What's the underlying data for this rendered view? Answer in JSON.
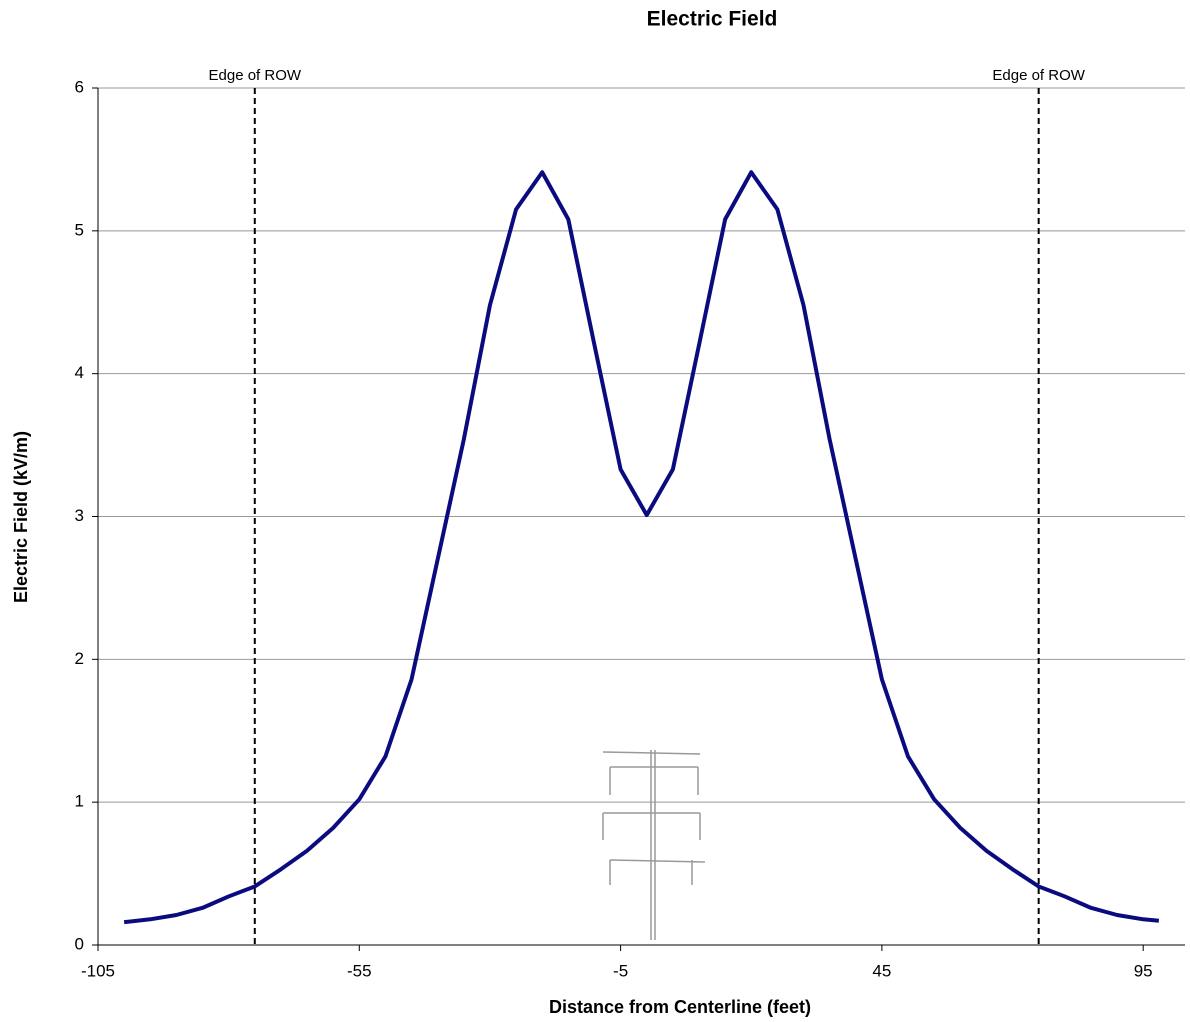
{
  "chart_data": {
    "type": "line",
    "title": "Electric Field",
    "x_label": "Distance from Centerline (feet)",
    "y_label": "Electric Field (kV/m)",
    "x": [
      -100,
      -95,
      -90,
      -85,
      -80,
      -75,
      -70,
      -65,
      -60,
      -55,
      -50,
      -45,
      -40,
      -35,
      -30,
      -25,
      -20,
      -15,
      -10,
      -5,
      0,
      5,
      10,
      15,
      20,
      25,
      30,
      35,
      40,
      45,
      50,
      55,
      60,
      65,
      70,
      75,
      80,
      85,
      90,
      95,
      98
    ],
    "series": [
      {
        "name": "Electric Field",
        "color": "#0b0b80",
        "values": [
          0.16,
          0.18,
          0.21,
          0.26,
          0.34,
          0.41,
          0.53,
          0.66,
          0.82,
          1.02,
          1.32,
          1.86,
          2.7,
          3.54,
          4.48,
          5.15,
          5.41,
          5.08,
          4.2,
          3.33,
          3.01,
          3.33,
          4.2,
          5.08,
          5.41,
          5.15,
          4.48,
          3.54,
          2.7,
          1.86,
          1.32,
          1.02,
          0.82,
          0.66,
          0.53,
          0.41,
          0.34,
          0.26,
          0.21,
          0.18,
          0.17
        ]
      }
    ],
    "xlim": [
      -105,
      103
    ],
    "xticks": [
      -105,
      -55,
      -5,
      45,
      95
    ],
    "ylim": [
      0,
      6
    ],
    "yticks": [
      0,
      1,
      2,
      3,
      4,
      5,
      6
    ],
    "grid": true,
    "annotations": [
      {
        "text": "Edge of ROW",
        "x": -75
      },
      {
        "text": "Edge of ROW",
        "x": 75
      }
    ]
  }
}
